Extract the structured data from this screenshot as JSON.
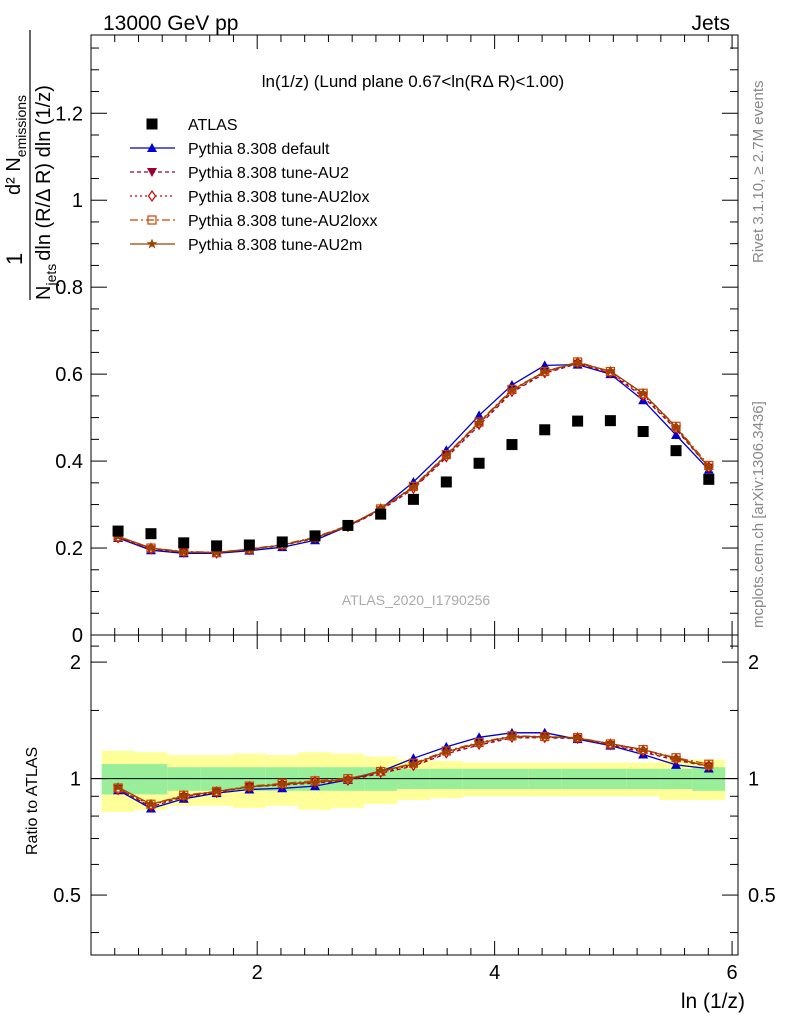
{
  "header": {
    "left": "13000 GeV pp",
    "right": "Jets"
  },
  "side_labels": {
    "rivet": "Rivet 3.1.10, ≥ 2.7M events",
    "mcplots": "mcplots.cern.ch [arXiv:1306.3436]"
  },
  "chart_data": {
    "type": "line",
    "title": "ln(1/z) (Lund plane 0.67<ln(RΔ R)<1.00)",
    "analysis_id": "ATLAS_2020_I1790256",
    "xlabel": "ln (1/z)",
    "ylabel": {
      "numerator": "d² N",
      "numerator_sub": "emissions",
      "denominator": "N",
      "denominator_sub": "jets",
      "denominator_rest": "dln (R/Δ R) dln (1/z)",
      "prefix": "1"
    },
    "ratio_ylabel": "Ratio to ATLAS",
    "xlim": [
      0.6,
      6.05
    ],
    "ylim": [
      0,
      1.38
    ],
    "ratio_ylim": [
      0.35,
      2.35
    ],
    "x_ticks": [
      "2",
      "4",
      "6"
    ],
    "y_ticks": [
      "0",
      "0.2",
      "0.4",
      "0.6",
      "0.8",
      "1",
      "1.2"
    ],
    "ratio_y_ticks": [
      "0.5",
      "1",
      "2"
    ],
    "x": [
      0.828,
      1.105,
      1.381,
      1.658,
      1.934,
      2.211,
      2.487,
      2.764,
      3.04,
      3.316,
      3.593,
      3.869,
      4.146,
      4.422,
      4.699,
      4.975,
      5.251,
      5.528,
      5.804
    ],
    "data": {
      "name": "ATLAS",
      "values": [
        0.239,
        0.233,
        0.212,
        0.205,
        0.207,
        0.214,
        0.228,
        0.252,
        0.278,
        0.312,
        0.352,
        0.395,
        0.438,
        0.472,
        0.492,
        0.493,
        0.468,
        0.424,
        0.358
      ],
      "band_inner_rel": [
        0.09,
        0.09,
        0.07,
        0.07,
        0.07,
        0.07,
        0.07,
        0.07,
        0.07,
        0.06,
        0.06,
        0.06,
        0.06,
        0.06,
        0.06,
        0.06,
        0.06,
        0.06,
        0.07
      ],
      "band_outer_rel": [
        0.18,
        0.17,
        0.15,
        0.15,
        0.16,
        0.15,
        0.17,
        0.16,
        0.14,
        0.12,
        0.11,
        0.1,
        0.1,
        0.1,
        0.1,
        0.1,
        0.1,
        0.12,
        0.12
      ]
    },
    "series": [
      {
        "name": "Pythia 8.308 default",
        "color": "#0000cc",
        "marker": "triangle-up",
        "dash": "",
        "values": [
          0.223,
          0.195,
          0.188,
          0.188,
          0.194,
          0.202,
          0.218,
          0.25,
          0.29,
          0.352,
          0.425,
          0.505,
          0.575,
          0.62,
          0.622,
          0.6,
          0.54,
          0.46,
          0.38
        ]
      },
      {
        "name": "Pythia 8.308 tune-AU2",
        "color": "#990033",
        "marker": "triangle-down",
        "dash": "4,3",
        "values": [
          0.225,
          0.197,
          0.19,
          0.189,
          0.197,
          0.206,
          0.222,
          0.249,
          0.287,
          0.336,
          0.408,
          0.482,
          0.558,
          0.602,
          0.624,
          0.602,
          0.548,
          0.473,
          0.385
        ]
      },
      {
        "name": "Pythia 8.308 tune-AU2lox",
        "color": "#cc0000",
        "marker": "diamond-open",
        "dash": "2,3",
        "values": [
          0.224,
          0.199,
          0.191,
          0.189,
          0.197,
          0.207,
          0.224,
          0.25,
          0.289,
          0.338,
          0.411,
          0.486,
          0.561,
          0.604,
          0.626,
          0.604,
          0.552,
          0.476,
          0.386
        ]
      },
      {
        "name": "Pythia 8.308 tune-AU2loxx",
        "color": "#cc4400",
        "marker": "square-open",
        "dash": "8,3,2,3",
        "values": [
          0.226,
          0.2,
          0.192,
          0.19,
          0.198,
          0.208,
          0.225,
          0.252,
          0.29,
          0.342,
          0.415,
          0.49,
          0.565,
          0.606,
          0.628,
          0.606,
          0.556,
          0.48,
          0.39
        ]
      },
      {
        "name": "Pythia 8.308 tune-AU2m",
        "color": "#994400",
        "marker": "star",
        "dash": "",
        "values": [
          0.227,
          0.2,
          0.191,
          0.19,
          0.197,
          0.207,
          0.223,
          0.251,
          0.291,
          0.34,
          0.413,
          0.488,
          0.563,
          0.606,
          0.626,
          0.607,
          0.556,
          0.478,
          0.385
        ]
      }
    ],
    "legend_position": "top-left",
    "grid": false
  }
}
